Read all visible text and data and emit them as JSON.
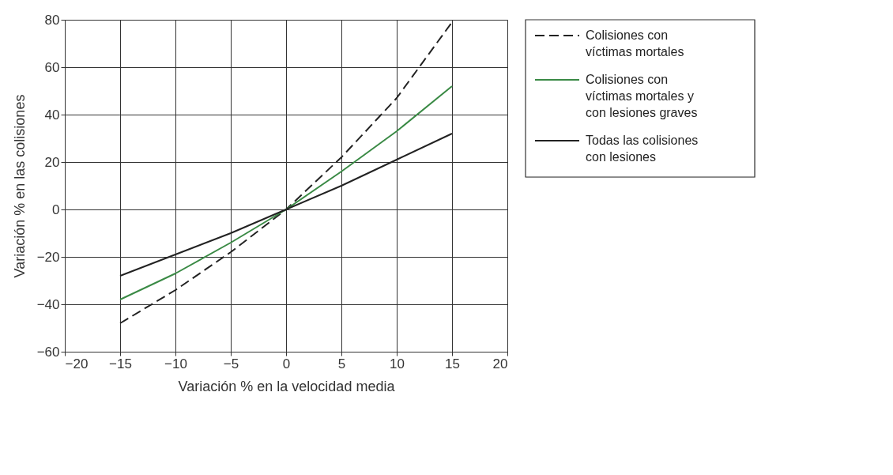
{
  "chart_data": {
    "type": "line",
    "xlabel": "Variación % en la velocidad media",
    "ylabel": "Variación % en las colisiones",
    "x": [
      -15,
      -10,
      -5,
      0,
      5,
      10,
      15
    ],
    "series": [
      {
        "name": "Colisiones con víctimas mortales",
        "color": "#222222",
        "line_style": "dashed",
        "values": [
          -48,
          -34,
          -18,
          0,
          22,
          47,
          79
        ]
      },
      {
        "name": "Colisiones con víctimas mortales y con lesiones graves",
        "color": "#3a8a45",
        "line_style": "solid",
        "values": [
          -38,
          -27,
          -14,
          0,
          16,
          33,
          52
        ]
      },
      {
        "name": "Todas las colisiones con lesiones",
        "color": "#222222",
        "line_style": "solid",
        "values": [
          -28,
          -19,
          -10,
          0,
          10,
          21,
          32
        ]
      }
    ],
    "xlim": [
      -20,
      20
    ],
    "xticks": [
      -20,
      -15,
      -10,
      -5,
      0,
      5,
      10,
      15,
      20
    ],
    "ylim": [
      -60,
      80
    ],
    "yticks": [
      -60,
      -40,
      -20,
      0,
      20,
      40,
      60,
      80
    ],
    "grid": true,
    "legend": "right",
    "marker": "none"
  }
}
